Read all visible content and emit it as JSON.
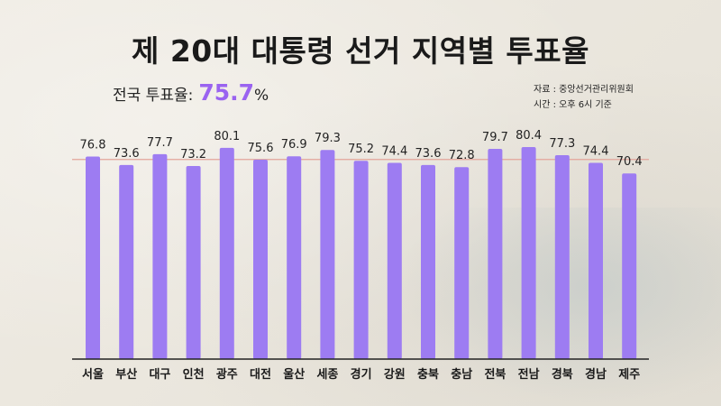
{
  "title": "제 20대 대통령 선거 지역별 투표율",
  "national": {
    "label": "전국 투표율:",
    "value": "75.7",
    "unit": "%"
  },
  "source": {
    "line1": "자료 : 중앙선거관리위원회",
    "line2": "시간 : 오후 6시 기준"
  },
  "colors": {
    "bar": "#9d7cf2",
    "accent": "#9a63f0",
    "reference_line": "#e3a49a"
  },
  "chart_data": {
    "type": "bar",
    "title": "제 20대 대통령 선거 지역별 투표율",
    "categories": [
      "서울",
      "부산",
      "대구",
      "인천",
      "광주",
      "대전",
      "울산",
      "세종",
      "경기",
      "강원",
      "충북",
      "충남",
      "전북",
      "전남",
      "경북",
      "경남",
      "제주"
    ],
    "values": [
      76.8,
      73.6,
      77.7,
      73.2,
      80.1,
      75.6,
      76.9,
      79.3,
      75.2,
      74.4,
      73.6,
      72.8,
      79.7,
      80.4,
      77.3,
      74.4,
      70.4
    ],
    "reference_value": 75.7,
    "xlabel": "",
    "ylabel": "",
    "ylim": [
      0,
      80.4
    ],
    "grid": false,
    "legend": "none"
  }
}
